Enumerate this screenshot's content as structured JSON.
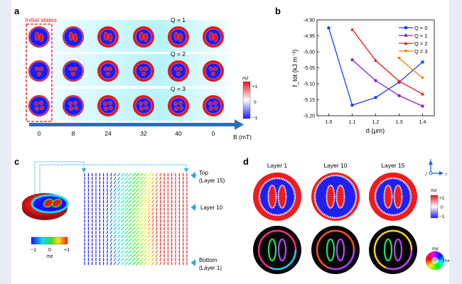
{
  "panel_a": {
    "label": "a",
    "initial_states": "Initial states",
    "rows": [
      {
        "q": "Q = 1",
        "blobs": 2
      },
      {
        "q": "Q = 2",
        "blobs": 3
      },
      {
        "q": "Q = 3",
        "blobs": 4
      }
    ],
    "field_values": [
      "0",
      "8",
      "24",
      "32",
      "40",
      "0"
    ],
    "field_axis_label": "B (mT)",
    "colorbar": {
      "title": "mz",
      "ticks": [
        "+1",
        "0",
        "−1"
      ]
    }
  },
  "panel_b": {
    "label": "b"
  },
  "chart_data": {
    "type": "line",
    "xlabel": "d (µm)",
    "ylabel": "f_tot (kJ m⁻³)",
    "xlim": [
      0.95,
      1.45
    ],
    "ylim": [
      -5.2,
      -4.9
    ],
    "xticks": [
      "1.0",
      "1.1",
      "1.2",
      "1.3",
      "1.4"
    ],
    "yticks": [
      "-4.90",
      "-4.95",
      "-5.00",
      "-5.05",
      "-5.10",
      "-5.15",
      "-5.20"
    ],
    "legend_position": "top-right",
    "series": [
      {
        "name": "Q = 0",
        "color": "#1f3cff",
        "marker": "square",
        "x": [
          1.0,
          1.1,
          1.2,
          1.3,
          1.4
        ],
        "y": [
          -4.925,
          -5.167,
          -5.143,
          -5.095,
          -5.032
        ]
      },
      {
        "name": "Q = 1",
        "color": "#8e24c8",
        "marker": "circle",
        "x": [
          1.1,
          1.2,
          1.3,
          1.4
        ],
        "y": [
          -5.025,
          -5.09,
          -5.137,
          -5.17
        ]
      },
      {
        "name": "Q = 2",
        "color": "#f01414",
        "marker": "triangle-up",
        "x": [
          1.1,
          1.2,
          1.3,
          1.4
        ],
        "y": [
          -4.93,
          -5.027,
          -5.092,
          -5.132
        ]
      },
      {
        "name": "Q = 3",
        "color": "#f07a14",
        "marker": "triangle-down",
        "x": [
          1.3,
          1.4
        ],
        "y": [
          -5.02,
          -5.082
        ]
      }
    ]
  },
  "panel_c": {
    "label": "c",
    "top_label": [
      "Top",
      "(Layer 15)"
    ],
    "middle_label": "Layer 10",
    "bottom_label": [
      "Bottom",
      "(Layer 1)"
    ],
    "colorbar": {
      "ticks": [
        "−1",
        "0",
        "+1"
      ],
      "title": "mz"
    }
  },
  "panel_d": {
    "label": "d",
    "layers": [
      "Layer 1",
      "Layer 10",
      "Layer 15"
    ],
    "axes": {
      "x": "x",
      "y": "y",
      "z": "z"
    },
    "colorbar": {
      "title": "mz",
      "ticks": [
        "+1",
        "0",
        "−1"
      ]
    },
    "wheel": {
      "x": "mx",
      "y": "my"
    }
  }
}
